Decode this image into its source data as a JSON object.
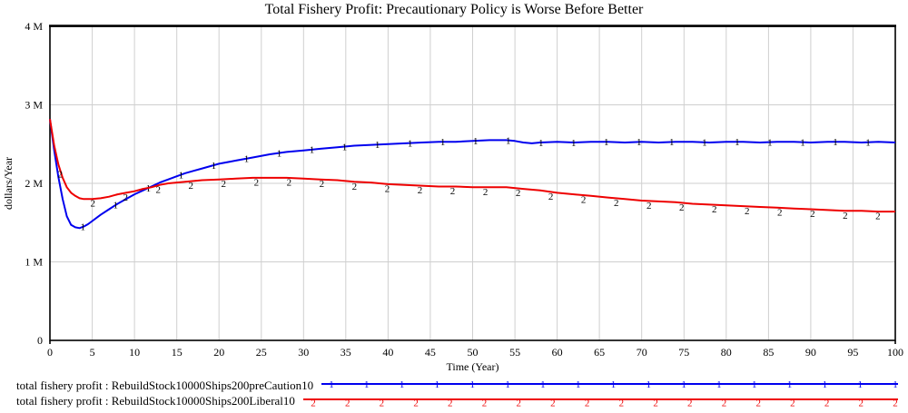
{
  "title": "Total Fishery Profit: Precautionary Policy is Worse Before Better",
  "chart_data": {
    "type": "line",
    "title": "Total Fishery Profit: Precautionary Policy is Worse Before Better",
    "xlabel": "Time (Year)",
    "ylabel": "dollars/Year",
    "value_unit": "millions of dollars/Year",
    "xlim": [
      0,
      100
    ],
    "ylim": [
      0,
      4
    ],
    "grid": true,
    "grid_color": "#cfcfcf",
    "frame_color": "#000000",
    "x_ticks": [
      0,
      5,
      10,
      15,
      20,
      25,
      30,
      35,
      40,
      45,
      50,
      55,
      60,
      65,
      70,
      75,
      80,
      85,
      90,
      95,
      100
    ],
    "y_ticks": [
      {
        "value": 0,
        "label": "0"
      },
      {
        "value": 1,
        "label": "1 M"
      },
      {
        "value": 2,
        "label": "2 M"
      },
      {
        "value": 3,
        "label": "3 M"
      },
      {
        "value": 4,
        "label": "4 M"
      }
    ],
    "series": [
      {
        "name": "total fishery profit : RebuildStock10000Ships200preCaution10",
        "color": "#0000ee",
        "marker": "1",
        "marker_start": 3.9,
        "marker_step": 3.87,
        "points": [
          [
            0,
            2.82
          ],
          [
            0.5,
            2.42
          ],
          [
            1,
            2.08
          ],
          [
            1.5,
            1.8
          ],
          [
            2,
            1.58
          ],
          [
            2.5,
            1.47
          ],
          [
            3,
            1.44
          ],
          [
            3.5,
            1.43
          ],
          [
            4,
            1.45
          ],
          [
            4.5,
            1.48
          ],
          [
            5,
            1.52
          ],
          [
            6,
            1.6
          ],
          [
            7,
            1.67
          ],
          [
            8,
            1.74
          ],
          [
            9,
            1.8
          ],
          [
            10,
            1.86
          ],
          [
            11,
            1.91
          ],
          [
            12,
            1.96
          ],
          [
            13,
            2.01
          ],
          [
            14,
            2.05
          ],
          [
            15,
            2.09
          ],
          [
            16,
            2.13
          ],
          [
            17,
            2.16
          ],
          [
            18,
            2.19
          ],
          [
            19,
            2.22
          ],
          [
            20,
            2.25
          ],
          [
            22,
            2.29
          ],
          [
            24,
            2.33
          ],
          [
            26,
            2.37
          ],
          [
            28,
            2.4
          ],
          [
            30,
            2.42
          ],
          [
            32,
            2.44
          ],
          [
            34,
            2.46
          ],
          [
            36,
            2.48
          ],
          [
            38,
            2.49
          ],
          [
            40,
            2.5
          ],
          [
            42,
            2.51
          ],
          [
            44,
            2.52
          ],
          [
            46,
            2.53
          ],
          [
            48,
            2.53
          ],
          [
            50,
            2.54
          ],
          [
            52,
            2.55
          ],
          [
            54,
            2.55
          ],
          [
            55,
            2.54
          ],
          [
            56,
            2.52
          ],
          [
            57,
            2.51
          ],
          [
            58,
            2.52
          ],
          [
            60,
            2.53
          ],
          [
            62,
            2.52
          ],
          [
            64,
            2.53
          ],
          [
            66,
            2.53
          ],
          [
            68,
            2.52
          ],
          [
            70,
            2.53
          ],
          [
            72,
            2.52
          ],
          [
            74,
            2.53
          ],
          [
            76,
            2.53
          ],
          [
            78,
            2.52
          ],
          [
            80,
            2.53
          ],
          [
            82,
            2.53
          ],
          [
            84,
            2.52
          ],
          [
            86,
            2.53
          ],
          [
            88,
            2.53
          ],
          [
            90,
            2.52
          ],
          [
            92,
            2.53
          ],
          [
            94,
            2.53
          ],
          [
            96,
            2.52
          ],
          [
            98,
            2.53
          ],
          [
            100,
            2.52
          ]
        ]
      },
      {
        "name": "total fishery profit : RebuildStock10000Ships200Liberal10",
        "color": "#ee0000",
        "marker": "2",
        "marker_start": 1.2,
        "marker_step": 3.87,
        "points": [
          [
            0,
            2.82
          ],
          [
            0.5,
            2.48
          ],
          [
            1,
            2.24
          ],
          [
            1.5,
            2.07
          ],
          [
            2,
            1.95
          ],
          [
            2.5,
            1.88
          ],
          [
            3,
            1.84
          ],
          [
            3.5,
            1.81
          ],
          [
            4,
            1.8
          ],
          [
            5,
            1.8
          ],
          [
            6,
            1.81
          ],
          [
            7,
            1.83
          ],
          [
            8,
            1.86
          ],
          [
            9,
            1.88
          ],
          [
            10,
            1.9
          ],
          [
            11,
            1.93
          ],
          [
            12,
            1.95
          ],
          [
            13,
            1.98
          ],
          [
            14,
            2.0
          ],
          [
            15,
            2.01
          ],
          [
            16,
            2.02
          ],
          [
            17,
            2.03
          ],
          [
            18,
            2.04
          ],
          [
            20,
            2.05
          ],
          [
            22,
            2.06
          ],
          [
            24,
            2.07
          ],
          [
            26,
            2.07
          ],
          [
            28,
            2.07
          ],
          [
            30,
            2.06
          ],
          [
            32,
            2.05
          ],
          [
            34,
            2.04
          ],
          [
            36,
            2.02
          ],
          [
            38,
            2.01
          ],
          [
            40,
            1.99
          ],
          [
            42,
            1.98
          ],
          [
            44,
            1.97
          ],
          [
            46,
            1.96
          ],
          [
            48,
            1.96
          ],
          [
            50,
            1.95
          ],
          [
            52,
            1.95
          ],
          [
            54,
            1.95
          ],
          [
            56,
            1.93
          ],
          [
            58,
            1.91
          ],
          [
            60,
            1.88
          ],
          [
            62,
            1.86
          ],
          [
            64,
            1.84
          ],
          [
            66,
            1.82
          ],
          [
            68,
            1.8
          ],
          [
            70,
            1.78
          ],
          [
            72,
            1.77
          ],
          [
            74,
            1.76
          ],
          [
            76,
            1.74
          ],
          [
            78,
            1.73
          ],
          [
            80,
            1.72
          ],
          [
            82,
            1.71
          ],
          [
            84,
            1.7
          ],
          [
            86,
            1.69
          ],
          [
            88,
            1.68
          ],
          [
            90,
            1.67
          ],
          [
            92,
            1.66
          ],
          [
            94,
            1.65
          ],
          [
            96,
            1.65
          ],
          [
            98,
            1.64
          ],
          [
            100,
            1.64
          ]
        ]
      }
    ]
  },
  "legend": [
    {
      "label": "total fishery profit : RebuildStock10000Ships200preCaution10",
      "color": "#0000ee",
      "marker": "1"
    },
    {
      "label": "total fishery profit : RebuildStock10000Ships200Liberal10",
      "color": "#ee0000",
      "marker": "2"
    }
  ]
}
